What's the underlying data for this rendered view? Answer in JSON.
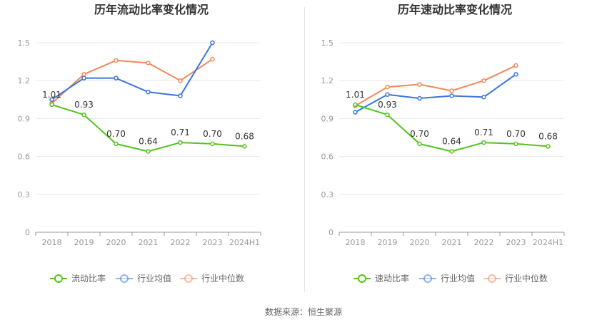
{
  "charts": [
    {
      "title": "历年流动比率变化情况",
      "legend": [
        "流动比率",
        "行业均值",
        "行业中位数"
      ]
    },
    {
      "title": "历年速动比率变化情况",
      "legend": [
        "速动比率",
        "行业均值",
        "行业中位数"
      ]
    }
  ],
  "source": "数据来源：恒生聚源",
  "colors": {
    "company": "#52c41a",
    "industry_mean": "#3a74e0",
    "industry_median": "#f0885a"
  },
  "chart_data": [
    {
      "type": "line",
      "title": "历年流动比率变化情况",
      "categories": [
        "2018",
        "2019",
        "2020",
        "2021",
        "2022",
        "2023",
        "2024H1"
      ],
      "yticks": [
        "0",
        "0.3",
        "0.6",
        "0.9",
        "1.2",
        "1.5"
      ],
      "ylim": [
        0,
        1.5
      ],
      "grid": true,
      "legend_position": "bottom",
      "series": [
        {
          "name": "流动比率",
          "values": [
            1.01,
            0.93,
            0.7,
            0.64,
            0.71,
            0.7,
            0.68
          ],
          "labels": [
            "1.01",
            "0.93",
            "0.70",
            "0.64",
            "0.71",
            "0.70",
            "0.68"
          ]
        },
        {
          "name": "行业均值",
          "values": [
            1.05,
            1.22,
            1.22,
            1.11,
            1.08,
            1.5,
            null
          ]
        },
        {
          "name": "行业中位数",
          "values": [
            1.02,
            1.25,
            1.36,
            1.34,
            1.2,
            1.37,
            null
          ]
        }
      ]
    },
    {
      "type": "line",
      "title": "历年速动比率变化情况",
      "categories": [
        "2018",
        "2019",
        "2020",
        "2021",
        "2022",
        "2023",
        "2024H1"
      ],
      "yticks": [
        "0",
        "0.3",
        "0.6",
        "0.9",
        "1.2",
        "1.5"
      ],
      "ylim": [
        0,
        1.5
      ],
      "grid": true,
      "legend_position": "bottom",
      "series": [
        {
          "name": "速动比率",
          "values": [
            1.01,
            0.93,
            0.7,
            0.64,
            0.71,
            0.7,
            0.68
          ],
          "labels": [
            "1.01",
            "0.93",
            "0.70",
            "0.64",
            "0.71",
            "0.70",
            "0.68"
          ]
        },
        {
          "name": "行业均值",
          "values": [
            0.95,
            1.09,
            1.06,
            1.08,
            1.07,
            1.25,
            null
          ]
        },
        {
          "name": "行业中位数",
          "values": [
            1.0,
            1.15,
            1.17,
            1.12,
            1.2,
            1.32,
            null
          ]
        }
      ]
    }
  ]
}
